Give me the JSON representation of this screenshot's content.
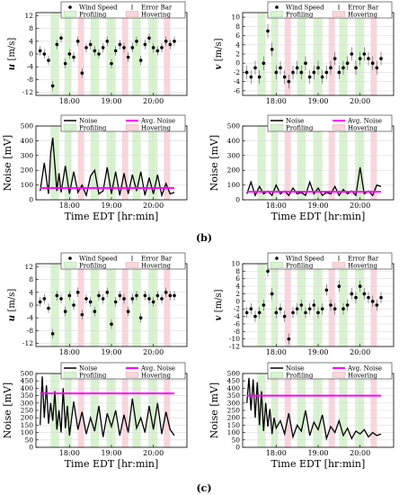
{
  "figure": {
    "caption_b": "(b)",
    "caption_c": "(c)"
  },
  "styles": {
    "profiling_color": "#d9f2d0",
    "hovering_color": "#f9d5dd",
    "noise_color": "#000000",
    "avg_noise_color": "#ff00ff",
    "marker_color": "#000000",
    "grid_color": "#dcdcdc"
  },
  "chart_data": [
    {
      "id": "b-u",
      "type": "scatter",
      "ylabel": "u [m/s]",
      "ylabel_var": "u",
      "ylabel_unit": "[m/s]",
      "xlabel": "",
      "ylim": [
        -13,
        13
      ],
      "xlim": [
        17.2,
        20.8
      ],
      "xticks": [
        "18:00",
        "19:00",
        "20:00"
      ],
      "yticks": [
        -12,
        -8,
        -4,
        0,
        4,
        8,
        12
      ],
      "legend": [
        "Wind Speed",
        "Error Bar",
        "Profiling",
        "Hovering"
      ],
      "profiling": [
        [
          17.55,
          17.75
        ],
        [
          17.88,
          18.05
        ],
        [
          18.5,
          18.7
        ],
        [
          18.88,
          19.1
        ],
        [
          19.5,
          19.7
        ],
        [
          19.88,
          20.1
        ]
      ],
      "hovering": [
        [
          18.2,
          18.35
        ],
        [
          19.25,
          19.4
        ],
        [
          20.25,
          20.4
        ]
      ],
      "series": [
        {
          "name": "Wind Speed",
          "x": [
            17.3,
            17.4,
            17.5,
            17.6,
            17.7,
            17.8,
            17.9,
            18.0,
            18.1,
            18.2,
            18.3,
            18.4,
            18.5,
            18.6,
            18.7,
            18.8,
            18.9,
            19.0,
            19.1,
            19.2,
            19.3,
            19.4,
            19.5,
            19.6,
            19.7,
            19.8,
            19.9,
            20.0,
            20.1,
            20.2,
            20.3,
            20.4,
            20.5
          ],
          "y": [
            1,
            0,
            -2,
            -10,
            3,
            5,
            -3,
            0,
            -1,
            4,
            -6,
            2,
            3,
            1,
            0,
            2,
            4,
            -3,
            1,
            3,
            2,
            -1,
            2,
            4,
            -2,
            3,
            5,
            2,
            1,
            2,
            4,
            3,
            4
          ]
        }
      ]
    },
    {
      "id": "b-v",
      "type": "scatter",
      "ylabel": "v [m/s]",
      "ylabel_var": "v",
      "ylabel_unit": "[m/s]",
      "xlabel": "",
      "ylim": [
        -7,
        11
      ],
      "xlim": [
        17.2,
        20.8
      ],
      "xticks": [
        "18:00",
        "19:00",
        "20:00"
      ],
      "yticks": [
        -6,
        -4,
        -2,
        0,
        2,
        4,
        6,
        8,
        10
      ],
      "legend": [
        "Wind Speed",
        "Error Bar",
        "Profiling",
        "Hovering"
      ],
      "profiling": [
        [
          17.55,
          17.75
        ],
        [
          17.88,
          18.05
        ],
        [
          18.5,
          18.7
        ],
        [
          18.88,
          19.1
        ],
        [
          19.5,
          19.7
        ],
        [
          19.88,
          20.1
        ]
      ],
      "hovering": [
        [
          18.2,
          18.35
        ],
        [
          19.25,
          19.4
        ],
        [
          20.25,
          20.4
        ]
      ],
      "series": [
        {
          "name": "Wind Speed",
          "x": [
            17.3,
            17.4,
            17.5,
            17.6,
            17.7,
            17.8,
            17.9,
            18.0,
            18.1,
            18.2,
            18.3,
            18.4,
            18.5,
            18.6,
            18.7,
            18.8,
            18.9,
            19.0,
            19.1,
            19.2,
            19.3,
            19.4,
            19.5,
            19.6,
            19.7,
            19.8,
            19.9,
            20.0,
            20.1,
            20.2,
            20.3,
            20.4,
            20.5
          ],
          "y": [
            -2,
            -3,
            -1,
            -3,
            0,
            7,
            3,
            -2,
            -1,
            -3,
            -4,
            -2,
            -1,
            -2,
            0,
            -3,
            -2,
            -1,
            -3,
            -2,
            -1,
            1,
            -2,
            -1,
            0,
            2,
            -1,
            1,
            2,
            1,
            0,
            -1,
            1
          ]
        }
      ]
    },
    {
      "id": "b-noise-left",
      "type": "line",
      "ylabel": "Noise [mV]",
      "xlabel": "Time EDT [hr:min]",
      "ylim": [
        0,
        500
      ],
      "xlim": [
        17.2,
        20.8
      ],
      "xticks": [
        "18:00",
        "19:00",
        "20:00"
      ],
      "yticks": [
        0,
        100,
        200,
        300,
        400,
        500
      ],
      "legend": [
        "Noise",
        "Avg. Noise",
        "Profiling",
        "Hovering"
      ],
      "avg_noise": 80,
      "profiling": [
        [
          17.55,
          17.75
        ],
        [
          17.88,
          18.05
        ],
        [
          18.5,
          18.7
        ],
        [
          18.88,
          19.1
        ],
        [
          19.5,
          19.7
        ],
        [
          19.88,
          20.1
        ]
      ],
      "hovering": [
        [
          18.2,
          18.35
        ],
        [
          19.25,
          19.4
        ],
        [
          20.25,
          20.4
        ]
      ],
      "series": [
        {
          "name": "Noise",
          "x": [
            17.3,
            17.4,
            17.5,
            17.55,
            17.6,
            17.7,
            17.75,
            17.8,
            17.9,
            18.0,
            18.1,
            18.2,
            18.3,
            18.4,
            18.5,
            18.6,
            18.7,
            18.8,
            18.9,
            19.0,
            19.1,
            19.2,
            19.3,
            19.4,
            19.5,
            19.6,
            19.7,
            19.8,
            19.9,
            20.0,
            20.1,
            20.2,
            20.3,
            20.4,
            20.5
          ],
          "y": [
            60,
            250,
            40,
            310,
            420,
            60,
            180,
            50,
            230,
            40,
            190,
            50,
            100,
            30,
            160,
            200,
            40,
            60,
            220,
            40,
            190,
            30,
            180,
            40,
            170,
            60,
            190,
            30,
            150,
            40,
            170,
            30,
            110,
            40,
            50
          ]
        }
      ]
    },
    {
      "id": "b-noise-right",
      "type": "line",
      "ylabel": "Noise [mV]",
      "xlabel": "Time EDT [hr:min]",
      "ylim": [
        0,
        500
      ],
      "xlim": [
        17.2,
        20.8
      ],
      "xticks": [
        "18:00",
        "19:00",
        "20:00"
      ],
      "yticks": [
        0,
        100,
        200,
        300,
        400,
        500
      ],
      "legend": [
        "Noise",
        "Avg. Noise",
        "Profiling",
        "Hovering"
      ],
      "avg_noise": 55,
      "profiling": [
        [
          17.55,
          17.75
        ],
        [
          17.88,
          18.05
        ],
        [
          18.5,
          18.7
        ],
        [
          18.88,
          19.1
        ],
        [
          19.5,
          19.7
        ],
        [
          19.88,
          20.1
        ]
      ],
      "hovering": [
        [
          18.2,
          18.35
        ],
        [
          19.25,
          19.4
        ],
        [
          20.25,
          20.4
        ]
      ],
      "series": [
        {
          "name": "Noise",
          "x": [
            17.3,
            17.4,
            17.5,
            17.6,
            17.7,
            17.8,
            17.9,
            18.0,
            18.1,
            18.2,
            18.3,
            18.4,
            18.5,
            18.6,
            18.7,
            18.8,
            18.9,
            19.0,
            19.1,
            19.2,
            19.3,
            19.4,
            19.5,
            19.6,
            19.7,
            19.8,
            19.9,
            20.0,
            20.1,
            20.2,
            20.3,
            20.4,
            20.5
          ],
          "y": [
            40,
            120,
            30,
            90,
            40,
            60,
            30,
            100,
            40,
            60,
            30,
            80,
            40,
            50,
            30,
            120,
            40,
            80,
            30,
            50,
            40,
            90,
            30,
            70,
            40,
            60,
            30,
            220,
            40,
            60,
            30,
            100,
            90
          ]
        }
      ]
    },
    {
      "id": "c-u",
      "type": "scatter",
      "ylabel": "u [m/s]",
      "ylabel_var": "u",
      "ylabel_unit": "[m/s]",
      "xlabel": "",
      "ylim": [
        -13,
        13
      ],
      "xlim": [
        17.2,
        20.8
      ],
      "xticks": [
        "18:00",
        "19:00",
        "20:00"
      ],
      "yticks": [
        -12,
        -8,
        -4,
        0,
        4,
        8,
        12
      ],
      "legend": [
        "Wind Speed",
        "Error Bar",
        "Profiling",
        "Hovering"
      ],
      "profiling": [
        [
          17.55,
          17.75
        ],
        [
          17.88,
          18.05
        ],
        [
          18.5,
          18.7
        ],
        [
          18.88,
          19.1
        ],
        [
          19.5,
          19.7
        ],
        [
          19.88,
          20.1
        ]
      ],
      "hovering": [
        [
          18.2,
          18.35
        ],
        [
          19.25,
          19.4
        ],
        [
          20.25,
          20.4
        ]
      ],
      "series": [
        {
          "name": "Wind Speed",
          "x": [
            17.3,
            17.4,
            17.5,
            17.6,
            17.7,
            17.8,
            17.9,
            18.0,
            18.1,
            18.2,
            18.3,
            18.4,
            18.5,
            18.6,
            18.7,
            18.8,
            18.9,
            19.0,
            19.1,
            19.2,
            19.3,
            19.4,
            19.5,
            19.6,
            19.7,
            19.8,
            19.9,
            20.0,
            20.1,
            20.2,
            20.3,
            20.4,
            20.5
          ],
          "y": [
            1,
            2,
            -1,
            -9,
            3,
            2,
            -2,
            3,
            0,
            4,
            -3,
            2,
            1,
            -2,
            3,
            2,
            4,
            -6,
            1,
            3,
            2,
            -2,
            2,
            3,
            -4,
            3,
            2,
            1,
            3,
            2,
            4,
            3,
            3
          ]
        }
      ]
    },
    {
      "id": "c-v",
      "type": "scatter",
      "ylabel": "v [m/s]",
      "ylabel_var": "v",
      "ylabel_unit": "[m/s]",
      "xlabel": "",
      "ylim": [
        -12,
        10
      ],
      "xlim": [
        17.2,
        20.8
      ],
      "xticks": [
        "18:00",
        "19:00",
        "20:00"
      ],
      "yticks": [
        -12,
        -10,
        -8,
        -6,
        -4,
        -2,
        0,
        2,
        4,
        6,
        8,
        10
      ],
      "legend": [
        "Wind Speed",
        "Error Bar",
        "Profiling",
        "Hovering"
      ],
      "profiling": [
        [
          17.55,
          17.75
        ],
        [
          17.88,
          18.05
        ],
        [
          18.5,
          18.7
        ],
        [
          18.88,
          19.1
        ],
        [
          19.5,
          19.7
        ],
        [
          19.88,
          20.1
        ]
      ],
      "hovering": [
        [
          18.2,
          18.35
        ],
        [
          19.25,
          19.4
        ],
        [
          20.25,
          20.4
        ]
      ],
      "series": [
        {
          "name": "Wind Speed",
          "x": [
            17.3,
            17.4,
            17.5,
            17.6,
            17.7,
            17.8,
            17.9,
            18.0,
            18.1,
            18.2,
            18.3,
            18.4,
            18.5,
            18.6,
            18.7,
            18.8,
            18.9,
            19.0,
            19.1,
            19.2,
            19.3,
            19.4,
            19.5,
            19.6,
            19.7,
            19.8,
            19.9,
            20.0,
            20.1,
            20.2,
            20.3,
            20.4,
            20.5
          ],
          "y": [
            -3,
            -2,
            -4,
            -3,
            -1,
            8,
            2,
            -3,
            -2,
            -4,
            -10,
            -3,
            -2,
            -1,
            -3,
            -2,
            -1,
            -3,
            -2,
            3,
            -1,
            -2,
            4,
            -2,
            -1,
            2,
            1,
            4,
            2,
            1,
            0,
            -1,
            1
          ]
        }
      ]
    },
    {
      "id": "c-noise-left",
      "type": "line",
      "ylabel": "Noise [mV]",
      "xlabel": "Time EDT [hr:min]",
      "ylim": [
        0,
        500
      ],
      "xlim": [
        17.2,
        20.8
      ],
      "xticks": [
        "18:00",
        "19:00",
        "20:00"
      ],
      "yticks": [
        0,
        50,
        100,
        150,
        200,
        250,
        300,
        350,
        400,
        450,
        500
      ],
      "legend": [
        "Noise",
        "Avg. Noise",
        "Profiling",
        "Hovering"
      ],
      "avg_noise": 365,
      "profiling": [
        [
          17.55,
          17.75
        ],
        [
          17.88,
          18.05
        ],
        [
          18.5,
          18.7
        ],
        [
          18.88,
          19.1
        ],
        [
          19.5,
          19.7
        ],
        [
          19.88,
          20.1
        ]
      ],
      "hovering": [
        [
          18.2,
          18.35
        ],
        [
          19.25,
          19.4
        ],
        [
          20.25,
          20.4
        ]
      ],
      "series": [
        {
          "name": "Noise",
          "x": [
            17.3,
            17.35,
            17.4,
            17.45,
            17.5,
            17.55,
            17.6,
            17.65,
            17.7,
            17.75,
            17.8,
            17.85,
            17.9,
            17.95,
            18.0,
            18.1,
            18.2,
            18.3,
            18.4,
            18.5,
            18.6,
            18.7,
            18.8,
            18.9,
            19.0,
            19.1,
            19.2,
            19.3,
            19.4,
            19.5,
            19.6,
            19.7,
            19.8,
            19.9,
            20.0,
            20.1,
            20.2,
            20.3,
            20.4,
            20.5
          ],
          "y": [
            150,
            480,
            200,
            420,
            160,
            300,
            180,
            380,
            120,
            250,
            100,
            400,
            130,
            280,
            80,
            310,
            120,
            240,
            90,
            200,
            110,
            280,
            70,
            230,
            140,
            250,
            80,
            220,
            100,
            330,
            130,
            200,
            100,
            280,
            120,
            300,
            90,
            240,
            120,
            80
          ]
        }
      ]
    },
    {
      "id": "c-noise-right",
      "type": "line",
      "ylabel": "Noise [mV]",
      "xlabel": "Time EDT [hr:min]",
      "ylim": [
        0,
        500
      ],
      "xlim": [
        17.2,
        20.8
      ],
      "xticks": [
        "18:00",
        "19:00",
        "20:00"
      ],
      "yticks": [
        0,
        50,
        100,
        150,
        200,
        250,
        300,
        350,
        400,
        450,
        500
      ],
      "legend": [
        "Noise",
        "Avg. Noise",
        "Profiling",
        "Hovering"
      ],
      "avg_noise": 350,
      "profiling": [
        [
          17.55,
          17.75
        ],
        [
          17.88,
          18.05
        ],
        [
          18.5,
          18.7
        ],
        [
          18.88,
          19.1
        ],
        [
          19.5,
          19.7
        ],
        [
          19.88,
          20.1
        ]
      ],
      "hovering": [
        [
          18.2,
          18.35
        ],
        [
          19.25,
          19.4
        ],
        [
          20.25,
          20.4
        ]
      ],
      "series": [
        {
          "name": "Noise",
          "x": [
            17.3,
            17.35,
            17.4,
            17.45,
            17.5,
            17.55,
            17.6,
            17.65,
            17.7,
            17.75,
            17.8,
            17.85,
            17.9,
            17.95,
            18.0,
            18.1,
            18.2,
            18.3,
            18.4,
            18.5,
            18.6,
            18.7,
            18.8,
            18.9,
            19.0,
            19.1,
            19.2,
            19.3,
            19.4,
            19.5,
            19.6,
            19.7,
            19.8,
            19.9,
            20.0,
            20.1,
            20.2,
            20.3,
            20.4,
            20.5
          ],
          "y": [
            300,
            470,
            250,
            460,
            200,
            440,
            150,
            380,
            110,
            300,
            140,
            260,
            90,
            200,
            130,
            180,
            90,
            230,
            70,
            150,
            110,
            250,
            80,
            170,
            120,
            220,
            60,
            140,
            100,
            180,
            80,
            130,
            60,
            110,
            90,
            120,
            70,
            100,
            80,
            90
          ]
        }
      ]
    }
  ]
}
